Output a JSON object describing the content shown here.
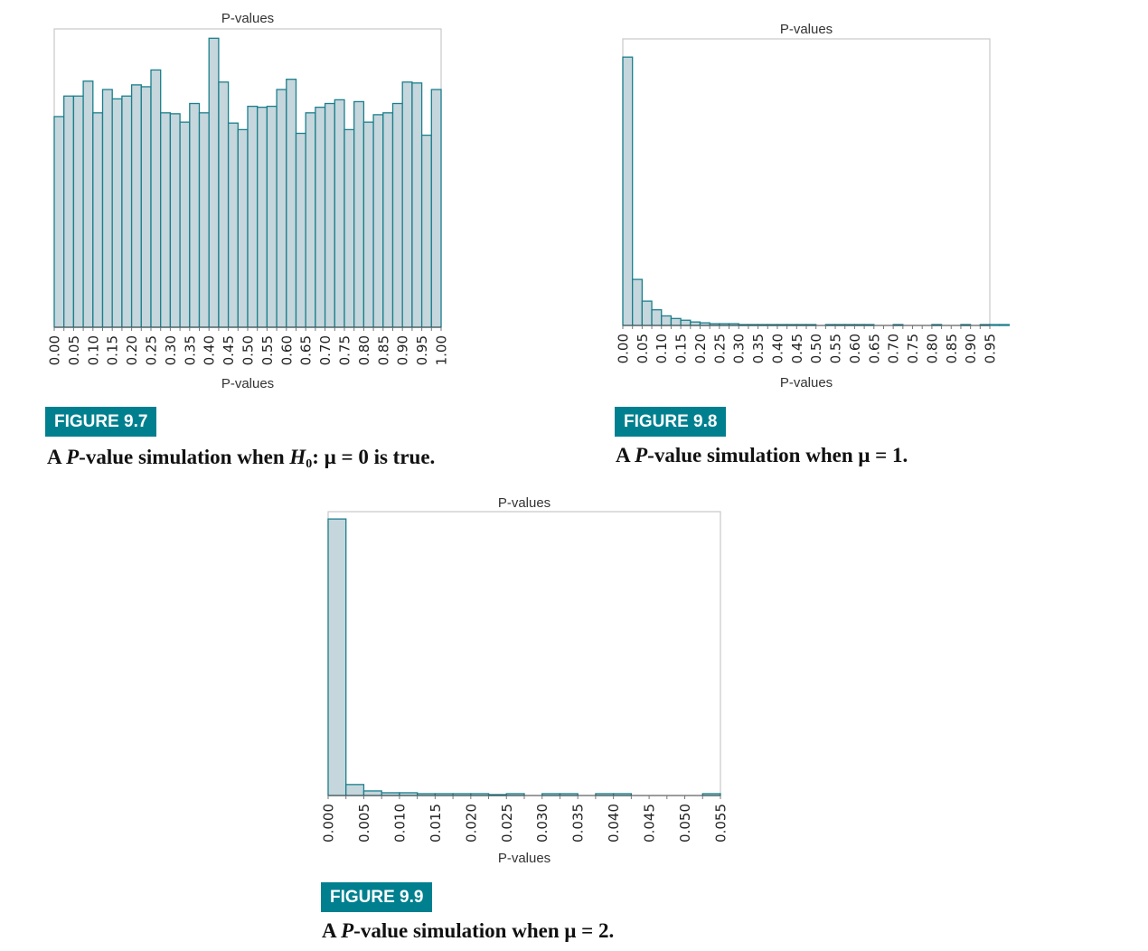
{
  "figures": [
    {
      "id": "fig97",
      "badge": "FIGURE 9.7",
      "caption": {
        "pre": "A ",
        "italic": "P",
        "mid": "-value simulation when ",
        "h": "H",
        "sub": "0",
        "post": ": μ = 0 is true."
      }
    },
    {
      "id": "fig98",
      "badge": "FIGURE 9.8",
      "caption": {
        "pre": "A ",
        "italic": "P",
        "post": "-value simulation when μ = 1."
      }
    },
    {
      "id": "fig99",
      "badge": "FIGURE 9.9",
      "caption": {
        "pre": "A ",
        "italic": "P",
        "post": "-value simulation when μ = 2."
      }
    }
  ],
  "chart_data": [
    {
      "type": "bar",
      "title": "P-values",
      "xlabel": "P-values",
      "ylabel": "",
      "xlim": [
        0,
        1.0
      ],
      "ylim": [
        0,
        32
      ],
      "bin_width": 0.025,
      "tick_labels": [
        "0.00",
        "0.05",
        "0.10",
        "0.15",
        "0.20",
        "0.25",
        "0.30",
        "0.35",
        "0.40",
        "0.45",
        "0.50",
        "0.55",
        "0.60",
        "0.65",
        "0.70",
        "0.75",
        "0.80",
        "0.85",
        "0.90",
        "0.95",
        "1.00"
      ],
      "values": [
        22.6,
        24.8,
        24.8,
        26.4,
        23.0,
        25.5,
        24.5,
        24.8,
        26.0,
        25.8,
        27.6,
        23.0,
        22.9,
        22.0,
        24.0,
        23.0,
        31.0,
        26.3,
        21.9,
        21.2,
        23.7,
        23.6,
        23.7,
        25.5,
        26.6,
        20.8,
        23.0,
        23.6,
        24.0,
        24.4,
        21.2,
        24.2,
        22.0,
        22.8,
        23.0,
        24.0,
        26.3,
        26.2,
        20.6,
        25.5
      ],
      "grid": false
    },
    {
      "type": "bar",
      "title": "P-values",
      "xlabel": "P-values",
      "ylabel": "",
      "xlim": [
        0,
        0.95
      ],
      "ylim": [
        0,
        330
      ],
      "bin_width": 0.025,
      "tick_labels": [
        "0.00",
        "0.05",
        "0.10",
        "0.15",
        "0.20",
        "0.25",
        "0.30",
        "0.35",
        "0.40",
        "0.45",
        "0.50",
        "0.55",
        "0.60",
        "0.65",
        "0.70",
        "0.75",
        "0.80",
        "0.85",
        "0.90",
        "0.95"
      ],
      "values": [
        309,
        53,
        28,
        18,
        11,
        8,
        6,
        4,
        3,
        2,
        2,
        2,
        1,
        1,
        1,
        1,
        1,
        1,
        1,
        1,
        0,
        1,
        1,
        1,
        1,
        1,
        0,
        0,
        1,
        0,
        0,
        0,
        1,
        0,
        0,
        1,
        0,
        1,
        1,
        1
      ],
      "grid": false
    },
    {
      "type": "bar",
      "title": "P-values",
      "xlabel": "P-values",
      "ylabel": "",
      "xlim": [
        0,
        0.055
      ],
      "ylim": [
        0,
        310
      ],
      "bin_width": 0.0025,
      "tick_labels": [
        "0.000",
        "0.005",
        "0.010",
        "0.015",
        "0.020",
        "0.025",
        "0.030",
        "0.035",
        "0.040",
        "0.045",
        "0.050",
        "0.055"
      ],
      "values": [
        302,
        12,
        5,
        3,
        3,
        2,
        2,
        2,
        2,
        1,
        2,
        0,
        2,
        2,
        0,
        2,
        2,
        0,
        0,
        0,
        0,
        2
      ],
      "grid": false
    }
  ]
}
